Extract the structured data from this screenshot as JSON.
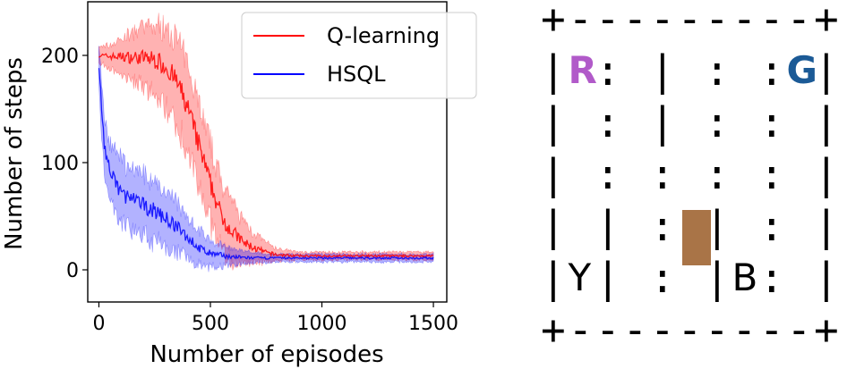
{
  "chart_data": {
    "type": "line",
    "xlabel": "Number of episodes",
    "ylabel": "Number of steps",
    "xlim": [
      -50,
      1560
    ],
    "ylim": [
      -30,
      250
    ],
    "xticks": [
      0,
      500,
      1000,
      1500
    ],
    "yticks": [
      0,
      100,
      200
    ],
    "grid": false,
    "legend_position": "top-right",
    "series": [
      {
        "name": "Q-learning",
        "color": "#ff0000",
        "x": [
          0,
          50,
          100,
          150,
          200,
          250,
          300,
          350,
          400,
          450,
          500,
          550,
          600,
          650,
          700,
          750,
          800,
          900,
          1000,
          1100,
          1200,
          1300,
          1400,
          1500
        ],
        "values": [
          200,
          199,
          199,
          198,
          198,
          196,
          190,
          175,
          150,
          115,
          80,
          50,
          35,
          25,
          20,
          16,
          14,
          13,
          13,
          13,
          13,
          13,
          13,
          13
        ],
        "band_width": [
          8,
          12,
          18,
          25,
          30,
          35,
          40,
          45,
          45,
          45,
          40,
          35,
          30,
          22,
          15,
          10,
          6,
          4,
          4,
          4,
          4,
          4,
          4,
          4
        ]
      },
      {
        "name": "HSQL",
        "color": "#0000ff",
        "x": [
          0,
          25,
          50,
          100,
          150,
          200,
          250,
          300,
          350,
          400,
          450,
          500,
          600,
          700,
          800,
          900,
          1000,
          1100,
          1200,
          1300,
          1400,
          1500
        ],
        "values": [
          190,
          115,
          90,
          72,
          65,
          60,
          55,
          48,
          40,
          30,
          20,
          15,
          12,
          11,
          11,
          11,
          11,
          11,
          11,
          11,
          11,
          11
        ],
        "band_width": [
          25,
          30,
          30,
          32,
          32,
          32,
          30,
          28,
          25,
          22,
          18,
          14,
          8,
          5,
          4,
          4,
          4,
          4,
          4,
          4,
          4,
          4
        ]
      }
    ]
  },
  "taxi_map": {
    "rows": [
      "+---------+",
      "|R: | : :G|",
      "| : | : : |",
      "| : : : : |",
      "| | : | : |",
      "|Y| : |B: |",
      "+---------+"
    ],
    "landmarks": [
      {
        "letter": "R",
        "color": "#b15ac9"
      },
      {
        "letter": "G",
        "color": "#1b5a96"
      },
      {
        "letter": "Y",
        "color": "#000000"
      },
      {
        "letter": "B",
        "color": "#000000"
      }
    ],
    "taxi": {
      "row": 3,
      "col": 2,
      "color": "#a97447"
    }
  }
}
